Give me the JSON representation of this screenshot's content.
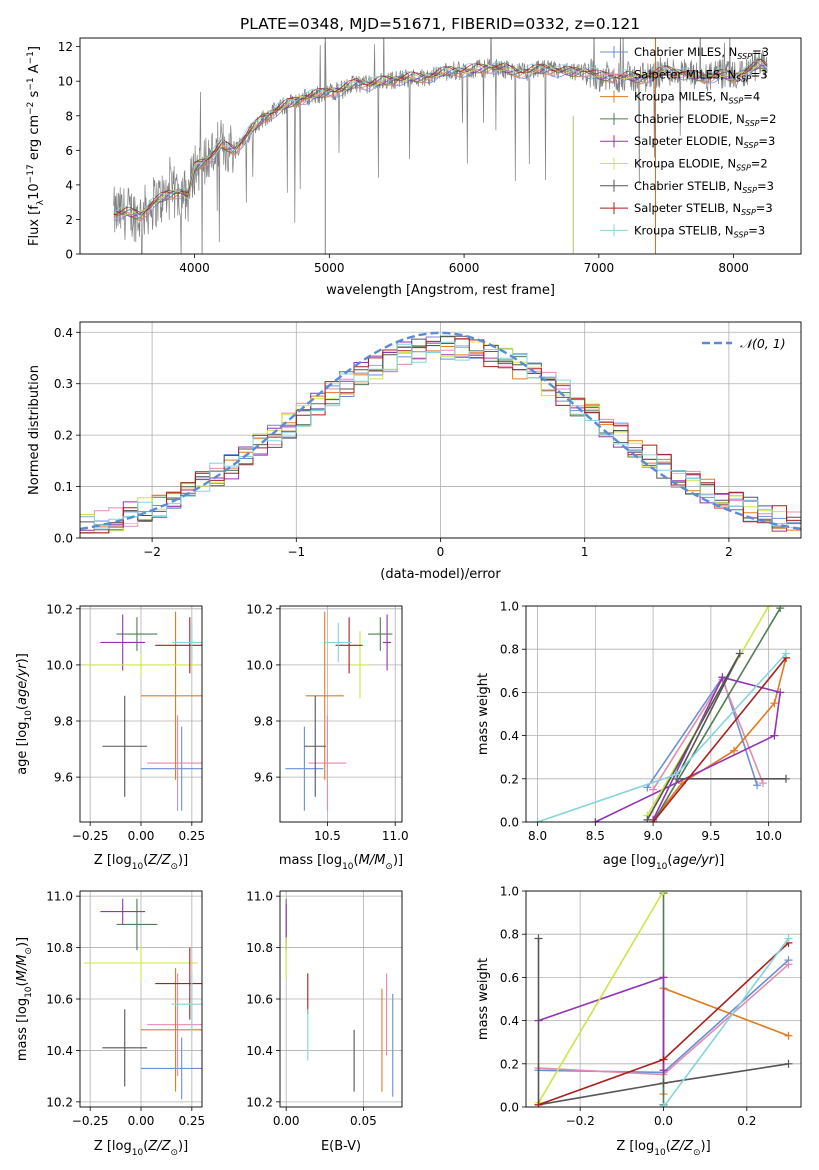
{
  "figure": {
    "title": "PLATE=0348, MJD=51671, FIBERID=0332, z=0.121"
  },
  "colors": {
    "Chabrier MILES": "#6a8fd6",
    "Salpeter MILES": "#e48bb0",
    "Kroupa MILES": "#e07b20",
    "Chabrier ELODIE": "#4f7d55",
    "Salpeter ELODIE": "#9433b5",
    "Kroupa ELODIE": "#cce64a",
    "Chabrier STELIB": "#555555",
    "Salpeter STELIB": "#aa1f1f",
    "Kroupa STELIB": "#84d6dc",
    "data": "#7f7f7f",
    "gaussian": "#5b8bd6"
  },
  "chart_data": [
    {
      "id": "spectrum",
      "type": "line",
      "title": "PLATE=0348, MJD=51671, FIBERID=0332, z=0.121",
      "xlabel": "wavelength [Angstrom, rest frame]",
      "ylabel": "Flux [f_λ 10^-17 erg cm^-2 s^-1 A^-1]",
      "xlim": [
        3150,
        8500
      ],
      "ylim": [
        0,
        12.5
      ],
      "xticks": [
        4000,
        5000,
        6000,
        7000,
        8000
      ],
      "yticks": [
        0,
        2,
        4,
        6,
        8,
        10,
        12
      ],
      "grid": false,
      "legend_position": "right",
      "legend": [
        {
          "name": "Chabrier MILES",
          "sub": "SSP",
          "n": "=3"
        },
        {
          "name": "Salpeter MILES",
          "sub": "SSP",
          "n": "=3"
        },
        {
          "name": "Kroupa MILES",
          "sub": "SSP",
          "n": "=4"
        },
        {
          "name": "Chabrier ELODIE",
          "sub": "SSP",
          "n": "=2"
        },
        {
          "name": "Salpeter ELODIE",
          "sub": "SSP",
          "n": "=3"
        },
        {
          "name": "Kroupa ELODIE",
          "sub": "SSP",
          "n": "=2"
        },
        {
          "name": "Chabrier STELIB",
          "sub": "SSP",
          "n": "=3"
        },
        {
          "name": "Salpeter STELIB",
          "sub": "SSP",
          "n": "=3"
        },
        {
          "name": "Kroupa STELIB",
          "sub": "SSP",
          "n": "=3"
        }
      ],
      "spectrum_points": [
        [
          3400,
          2.3
        ],
        [
          3500,
          2.4
        ],
        [
          3600,
          2.2
        ],
        [
          3700,
          3.0
        ],
        [
          3800,
          3.4
        ],
        [
          3900,
          3.6
        ],
        [
          3950,
          3.3
        ],
        [
          4000,
          5.0
        ],
        [
          4100,
          5.5
        ],
        [
          4200,
          6.3
        ],
        [
          4300,
          6.0
        ],
        [
          4400,
          7.0
        ],
        [
          4500,
          7.8
        ],
        [
          4600,
          8.3
        ],
        [
          4700,
          8.7
        ],
        [
          4800,
          9.0
        ],
        [
          4900,
          9.2
        ],
        [
          5000,
          9.4
        ],
        [
          5100,
          9.5
        ],
        [
          5200,
          9.9
        ],
        [
          5300,
          9.8
        ],
        [
          5400,
          10.0
        ],
        [
          5500,
          10.1
        ],
        [
          5600,
          10.2
        ],
        [
          5700,
          10.2
        ],
        [
          5800,
          10.4
        ],
        [
          5900,
          10.6
        ],
        [
          6000,
          10.6
        ],
        [
          6100,
          10.7
        ],
        [
          6200,
          10.8
        ],
        [
          6300,
          10.7
        ],
        [
          6400,
          10.5
        ],
        [
          6500,
          10.6
        ],
        [
          6600,
          10.7
        ],
        [
          6700,
          10.6
        ],
        [
          6800,
          10.5
        ],
        [
          6900,
          10.6
        ],
        [
          7000,
          10.3
        ],
        [
          7100,
          10.2
        ],
        [
          7200,
          10.3
        ],
        [
          7300,
          10.1
        ],
        [
          7400,
          10.4
        ],
        [
          7500,
          10.6
        ],
        [
          7600,
          10.5
        ],
        [
          7700,
          10.3
        ],
        [
          7800,
          10.2
        ],
        [
          7900,
          10.4
        ],
        [
          8000,
          10.2
        ],
        [
          8100,
          10.6
        ],
        [
          8200,
          11.0
        ],
        [
          8250,
          10.8
        ]
      ]
    },
    {
      "id": "residuals",
      "type": "line",
      "xlabel": "(data-model)/error",
      "ylabel": "Normed distribution",
      "xlim": [
        -2.5,
        2.5
      ],
      "ylim": [
        0,
        0.42
      ],
      "xticks": [
        -2,
        -1,
        0,
        1,
        2
      ],
      "yticks": [
        0.0,
        0.1,
        0.2,
        0.3,
        0.4
      ],
      "grid": true,
      "legend_position": "top-right",
      "legend": [
        "𝒩(0, 1)"
      ],
      "bin_width": 0.1,
      "bin_start": -2.5
    },
    {
      "id": "age_vs_Z",
      "type": "scatter",
      "xlabel": "Z [log10(Z/Z⊙)]",
      "ylabel": "age [log10(age/yr)]",
      "xlim": [
        -0.3,
        0.3
      ],
      "ylim": [
        9.44,
        10.21
      ],
      "xticks": [
        -0.25,
        0.0,
        0.25
      ],
      "xticklabels": [
        "−0.25",
        "0.00",
        "0.25"
      ],
      "yticks": [
        9.6,
        9.8,
        10.0,
        10.2
      ],
      "grid": true,
      "points": [
        {
          "lib": "Chabrier MILES",
          "x": 0.2,
          "y": 9.63,
          "xerr": 0.2,
          "yerr": 0.15
        },
        {
          "lib": "Salpeter MILES",
          "x": 0.18,
          "y": 9.65,
          "xerr": 0.15,
          "yerr": 0.17
        },
        {
          "lib": "Kroupa MILES",
          "x": 0.17,
          "y": 9.89,
          "xerr": 0.17,
          "yerr": 0.3
        },
        {
          "lib": "Chabrier ELODIE",
          "x": -0.02,
          "y": 10.11,
          "xerr": 0.1,
          "yerr": 0.06
        },
        {
          "lib": "Salpeter ELODIE",
          "x": -0.09,
          "y": 10.08,
          "xerr": 0.11,
          "yerr": 0.1
        },
        {
          "lib": "Kroupa ELODIE",
          "x": 0.0,
          "y": 10.0,
          "xerr": 0.28,
          "yerr": 0.04
        },
        {
          "lib": "Chabrier STELIB",
          "x": -0.08,
          "y": 9.71,
          "xerr": 0.11,
          "yerr": 0.18
        },
        {
          "lib": "Salpeter STELIB",
          "x": 0.24,
          "y": 10.07,
          "xerr": 0.17,
          "yerr": 0.1
        },
        {
          "lib": "Kroupa STELIB",
          "x": 0.25,
          "y": 10.08,
          "xerr": 0.1,
          "yerr": 0.07
        }
      ]
    },
    {
      "id": "age_vs_mass",
      "type": "scatter",
      "xlabel": "mass [log10(M/M⊙)]",
      "ylabel": "",
      "xlim": [
        10.15,
        11.05
      ],
      "ylim": [
        9.44,
        10.21
      ],
      "xticks": [
        10.5,
        11.0
      ],
      "xticklabels": [
        "10.5",
        "11.0"
      ],
      "yticks": [
        9.6,
        9.8,
        10.0,
        10.2
      ],
      "grid": true,
      "points": [
        {
          "lib": "Chabrier MILES",
          "x": 10.33,
          "y": 9.63,
          "xerr": 0.14,
          "yerr": 0.15
        },
        {
          "lib": "Salpeter MILES",
          "x": 10.5,
          "y": 9.65,
          "xerr": 0.14,
          "yerr": 0.17
        },
        {
          "lib": "Kroupa MILES",
          "x": 10.48,
          "y": 9.89,
          "xerr": 0.14,
          "yerr": 0.3
        },
        {
          "lib": "Chabrier ELODIE",
          "x": 10.89,
          "y": 10.11,
          "xerr": 0.09,
          "yerr": 0.06
        },
        {
          "lib": "Salpeter ELODIE",
          "x": 10.94,
          "y": 10.08,
          "xerr": 0.03,
          "yerr": 0.1
        },
        {
          "lib": "Kroupa ELODIE",
          "x": 10.74,
          "y": 10.0,
          "xerr": 0.07,
          "yerr": 0.12
        },
        {
          "lib": "Chabrier STELIB",
          "x": 10.41,
          "y": 9.71,
          "xerr": 0.08,
          "yerr": 0.18
        },
        {
          "lib": "Salpeter STELIB",
          "x": 10.66,
          "y": 10.07,
          "xerr": 0.1,
          "yerr": 0.1
        },
        {
          "lib": "Kroupa STELIB",
          "x": 10.58,
          "y": 10.08,
          "xerr": 0.1,
          "yerr": 0.07
        }
      ]
    },
    {
      "id": "weight_vs_age",
      "type": "line",
      "xlabel": "age [log10(age/yr)]",
      "ylabel": "mass weight",
      "xlim": [
        7.9,
        10.28
      ],
      "ylim": [
        0,
        1.0
      ],
      "xticks": [
        8.0,
        8.5,
        9.0,
        9.5,
        10.0
      ],
      "yticks": [
        0.0,
        0.2,
        0.4,
        0.6,
        0.8,
        1.0
      ],
      "grid": true,
      "series": [
        {
          "lib": "Chabrier MILES",
          "x": [
            8.95,
            9.6,
            9.9
          ],
          "y": [
            0.16,
            0.67,
            0.17
          ]
        },
        {
          "lib": "Salpeter MILES",
          "x": [
            9.0,
            9.6,
            9.95
          ],
          "y": [
            0.15,
            0.66,
            0.18
          ]
        },
        {
          "lib": "Kroupa MILES",
          "x": [
            9.0,
            9.25,
            9.7,
            10.05,
            10.15
          ],
          "y": [
            0.01,
            0.18,
            0.33,
            0.55,
            0.76
          ]
        },
        {
          "lib": "Chabrier ELODIE",
          "x": [
            9.0,
            10.1
          ],
          "y": [
            0.0,
            0.99
          ]
        },
        {
          "lib": "Salpeter ELODIE",
          "x": [
            8.5,
            10.05,
            10.1,
            9.6,
            9.0
          ],
          "y": [
            0.0,
            0.4,
            0.6,
            0.67,
            0.01
          ]
        },
        {
          "lib": "Kroupa ELODIE",
          "x": [
            8.95,
            10.0
          ],
          "y": [
            0.03,
            1.0
          ]
        },
        {
          "lib": "Chabrier STELIB",
          "x": [
            8.95,
            9.75,
            9.2,
            10.15
          ],
          "y": [
            0.01,
            0.78,
            0.2,
            0.2
          ]
        },
        {
          "lib": "Salpeter STELIB",
          "x": [
            9.0,
            10.15
          ],
          "y": [
            0.0,
            0.76
          ]
        },
        {
          "lib": "Kroupa STELIB",
          "x": [
            8.0,
            9.2,
            10.15
          ],
          "y": [
            0.0,
            0.22,
            0.78
          ]
        }
      ]
    },
    {
      "id": "mass_vs_Z",
      "type": "scatter",
      "xlabel": "Z [log10(Z/Z⊙)]",
      "ylabel": "mass [log10(M/M⊙)]",
      "xlim": [
        -0.3,
        0.3
      ],
      "ylim": [
        10.18,
        11.02
      ],
      "xticks": [
        -0.25,
        0.0,
        0.25
      ],
      "xticklabels": [
        "−0.25",
        "0.00",
        "0.25"
      ],
      "yticks": [
        10.2,
        10.4,
        10.6,
        10.8,
        11.0
      ],
      "grid": true,
      "points": [
        {
          "lib": "Chabrier MILES",
          "x": 0.2,
          "y": 10.33,
          "xerr": 0.2,
          "yerr": 0.12
        },
        {
          "lib": "Salpeter MILES",
          "x": 0.18,
          "y": 10.5,
          "xerr": 0.15,
          "yerr": 0.2
        },
        {
          "lib": "Kroupa MILES",
          "x": 0.17,
          "y": 10.48,
          "xerr": 0.17,
          "yerr": 0.24
        },
        {
          "lib": "Chabrier ELODIE",
          "x": -0.02,
          "y": 10.89,
          "xerr": 0.1,
          "yerr": 0.1
        },
        {
          "lib": "Salpeter ELODIE",
          "x": -0.09,
          "y": 10.94,
          "xerr": 0.11,
          "yerr": 0.05
        },
        {
          "lib": "Kroupa ELODIE",
          "x": 0.0,
          "y": 10.74,
          "xerr": 0.28,
          "yerr": 0.07
        },
        {
          "lib": "Chabrier STELIB",
          "x": -0.08,
          "y": 10.41,
          "xerr": 0.11,
          "yerr": 0.15
        },
        {
          "lib": "Salpeter STELIB",
          "x": 0.24,
          "y": 10.66,
          "xerr": 0.17,
          "yerr": 0.14
        },
        {
          "lib": "Kroupa STELIB",
          "x": 0.25,
          "y": 10.58,
          "xerr": 0.1,
          "yerr": 0.12
        }
      ]
    },
    {
      "id": "mass_vs_ebv",
      "type": "scatter",
      "xlabel": "E(B-V)",
      "ylabel": "",
      "xlim": [
        -0.004,
        0.075
      ],
      "ylim": [
        10.18,
        11.02
      ],
      "xticks": [
        0.0,
        0.05
      ],
      "xticklabels": [
        "0.00",
        "0.05"
      ],
      "yticks": [
        10.2,
        10.4,
        10.6,
        10.8,
        11.0
      ],
      "grid": true,
      "points": [
        {
          "lib": "Chabrier MILES",
          "x": 0.069,
          "y": 10.42,
          "xerr": 0,
          "yerr": 0.2
        },
        {
          "lib": "Salpeter MILES",
          "x": 0.065,
          "y": 10.54,
          "xerr": 0,
          "yerr": 0.16
        },
        {
          "lib": "Kroupa MILES",
          "x": 0.062,
          "y": 10.44,
          "xerr": 0,
          "yerr": 0.2
        },
        {
          "lib": "Chabrier ELODIE",
          "x": 0.0,
          "y": 10.89,
          "xerr": 0,
          "yerr": 0.1
        },
        {
          "lib": "Salpeter ELODIE",
          "x": 0.0,
          "y": 10.9,
          "xerr": 0,
          "yerr": 0.07
        },
        {
          "lib": "Kroupa ELODIE",
          "x": 0.0,
          "y": 10.76,
          "xerr": 0,
          "yerr": 0.08
        },
        {
          "lib": "Chabrier STELIB",
          "x": 0.044,
          "y": 10.36,
          "xerr": 0,
          "yerr": 0.12
        },
        {
          "lib": "Salpeter STELIB",
          "x": 0.014,
          "y": 10.62,
          "xerr": 0,
          "yerr": 0.08
        },
        {
          "lib": "Kroupa STELIB",
          "x": 0.014,
          "y": 10.46,
          "xerr": 0,
          "yerr": 0.1
        }
      ]
    },
    {
      "id": "weight_vs_Z",
      "type": "line",
      "xlabel": "Z [log10(Z/Z⊙)]",
      "ylabel": "mass weight",
      "xlim": [
        -0.33,
        0.33
      ],
      "ylim": [
        0,
        1.0
      ],
      "xticks": [
        -0.2,
        0.0,
        0.2
      ],
      "xticklabels": [
        "−0.2",
        "0.0",
        "0.2"
      ],
      "yticks": [
        0.0,
        0.2,
        0.4,
        0.6,
        0.8,
        1.0
      ],
      "grid": true,
      "series": [
        {
          "lib": "Chabrier MILES",
          "x": [
            -0.3,
            0.0,
            0.3
          ],
          "y": [
            0.17,
            0.16,
            0.68
          ]
        },
        {
          "lib": "Salpeter MILES",
          "x": [
            -0.3,
            0.0,
            0.3
          ],
          "y": [
            0.18,
            0.15,
            0.66
          ]
        },
        {
          "lib": "Kroupa MILES",
          "x": [
            0.0,
            0.0,
            0.3
          ],
          "y": [
            0.06,
            0.55,
            0.33
          ]
        },
        {
          "lib": "Chabrier ELODIE",
          "x": [
            0.0,
            0.0
          ],
          "y": [
            0.01,
            0.99
          ]
        },
        {
          "lib": "Salpeter ELODIE",
          "x": [
            -0.3,
            0.0,
            0.0
          ],
          "y": [
            0.4,
            0.6,
            0.17
          ]
        },
        {
          "lib": "Kroupa ELODIE",
          "x": [
            -0.3,
            0.0
          ],
          "y": [
            0.02,
            1.0
          ]
        },
        {
          "lib": "Chabrier STELIB",
          "x": [
            -0.3,
            -0.3,
            0.0,
            0.3
          ],
          "y": [
            0.78,
            0.01,
            0.11,
            0.2
          ]
        },
        {
          "lib": "Salpeter STELIB",
          "x": [
            -0.3,
            0.0,
            0.3
          ],
          "y": [
            0.01,
            0.22,
            0.76
          ]
        },
        {
          "lib": "Kroupa STELIB",
          "x": [
            0.0,
            0.3
          ],
          "y": [
            0.0,
            0.78
          ]
        }
      ]
    }
  ]
}
